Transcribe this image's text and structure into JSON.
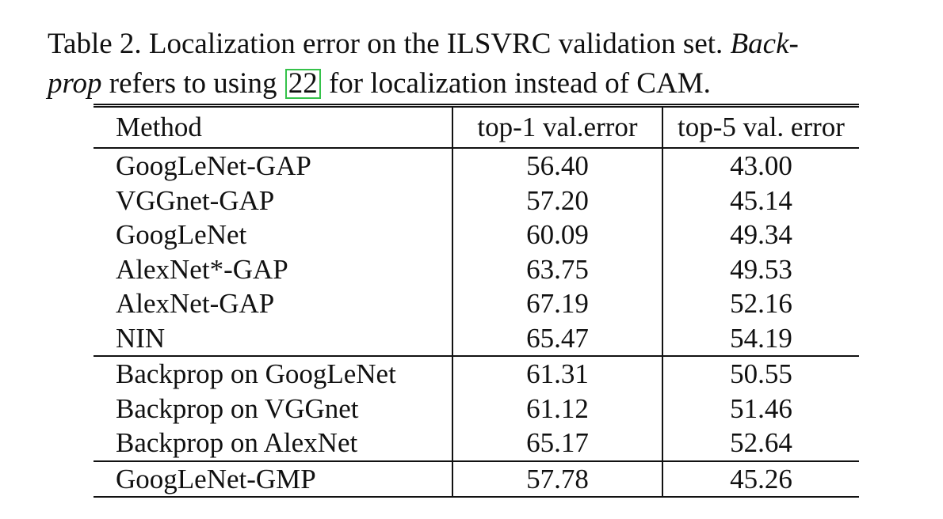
{
  "caption": {
    "lead": "Table 2. Localization error on the ILSVRC validation set. ",
    "emph1": "Back-",
    "emph2": "prop",
    "mid": " refers to using ",
    "ref": "22",
    "tail": " for localization instead of CAM."
  },
  "table": {
    "headers": [
      "Method",
      "top-1 val.error",
      "top-5 val. error"
    ],
    "rows": [
      [
        "GoogLeNet-GAP",
        "56.40",
        "43.00"
      ],
      [
        "VGGnet-GAP",
        "57.20",
        "45.14"
      ],
      [
        "GoogLeNet",
        "60.09",
        "49.34"
      ],
      [
        "AlexNet*-GAP",
        "63.75",
        "49.53"
      ],
      [
        "AlexNet-GAP",
        "67.19",
        "52.16"
      ],
      [
        "NIN",
        "65.47",
        "54.19"
      ],
      [
        "Backprop on GoogLeNet",
        "61.31",
        "50.55"
      ],
      [
        "Backprop on VGGnet",
        "61.12",
        "51.46"
      ],
      [
        "Backprop on AlexNet",
        "65.17",
        "52.64"
      ],
      [
        "GoogLeNet-GMP",
        "57.78",
        "45.26"
      ]
    ]
  }
}
